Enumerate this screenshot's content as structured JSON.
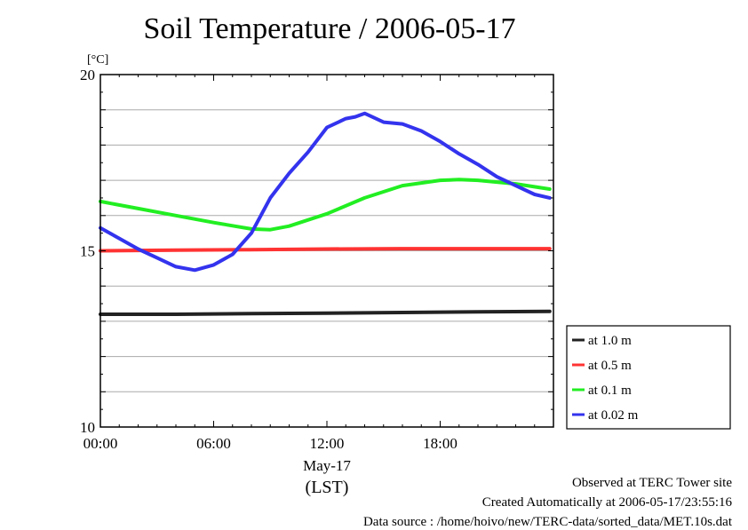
{
  "chart_data": {
    "type": "line",
    "title": "Soil Temperature / 2006-05-17",
    "ylabel": "[°C]",
    "xlabel_date": "May-17",
    "xlabel_unit": "(LST)",
    "ylim": [
      10,
      20
    ],
    "xlim": [
      0,
      24
    ],
    "y_ticks": [
      "10",
      "15",
      "20"
    ],
    "x_ticks": [
      {
        "value": 0,
        "label": "00:00"
      },
      {
        "value": 6,
        "label": "06:00"
      },
      {
        "value": 12,
        "label": "12:00"
      },
      {
        "value": 18,
        "label": "18:00"
      }
    ],
    "grid": true,
    "legend_position": "right-bottom",
    "series": [
      {
        "name": "at 1.0 m",
        "color": "#222222",
        "x": [
          0,
          4,
          8,
          12,
          16,
          20,
          23.8
        ],
        "y": [
          13.2,
          13.2,
          13.22,
          13.23,
          13.25,
          13.27,
          13.28
        ]
      },
      {
        "name": "at 0.5 m",
        "color": "#ff3333",
        "x": [
          0,
          4,
          8,
          12,
          16,
          20,
          23.8
        ],
        "y": [
          15.0,
          15.02,
          15.03,
          15.05,
          15.06,
          15.06,
          15.06
        ]
      },
      {
        "name": "at 0.1 m",
        "color": "#22ee22",
        "x": [
          0,
          2,
          4,
          6,
          8,
          9,
          10,
          12,
          14,
          16,
          18,
          19,
          20,
          22,
          23.8
        ],
        "y": [
          16.4,
          16.2,
          16.0,
          15.8,
          15.62,
          15.6,
          15.7,
          16.05,
          16.5,
          16.85,
          17.0,
          17.02,
          17.0,
          16.9,
          16.75
        ]
      },
      {
        "name": "at 0.02 m",
        "color": "#3333ee",
        "x": [
          0,
          1,
          2,
          3,
          4,
          5,
          6,
          7,
          8,
          9,
          10,
          11,
          12,
          13,
          13.5,
          14,
          15,
          16,
          17,
          18,
          19,
          20,
          21,
          22,
          23,
          23.8
        ],
        "y": [
          15.65,
          15.35,
          15.05,
          14.8,
          14.55,
          14.45,
          14.6,
          14.9,
          15.5,
          16.5,
          17.2,
          17.8,
          18.5,
          18.75,
          18.8,
          18.9,
          18.65,
          18.6,
          18.4,
          18.1,
          17.75,
          17.45,
          17.1,
          16.85,
          16.6,
          16.5
        ]
      }
    ]
  },
  "footer": {
    "line1": "Observed at TERC Tower site",
    "line2": "Created Automatically at 2006-05-17/23:55:16",
    "line3": "Data source : /home/hoivo/new/TERC-data/sorted_data/MET.10s.dat"
  }
}
